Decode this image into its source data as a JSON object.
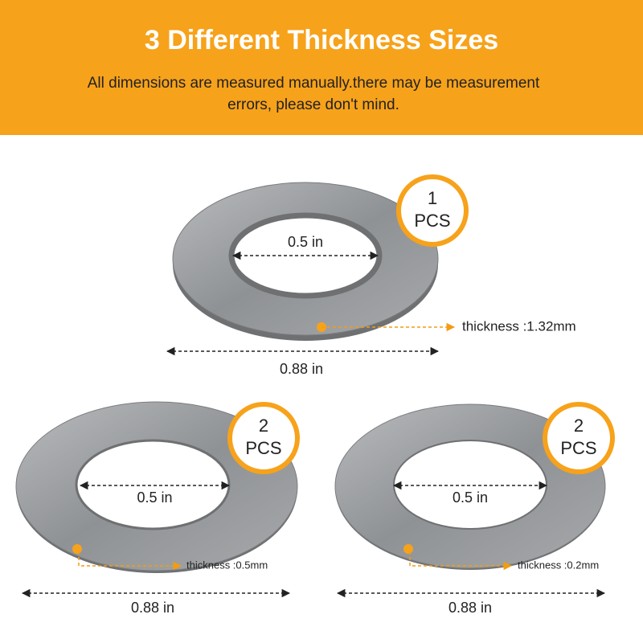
{
  "header": {
    "title": "3 Different Thickness Sizes",
    "subtitle_lines": [
      "All dimensions are measured manually.there may be measurement",
      "errors, please don't mind."
    ]
  },
  "washers": [
    {
      "count": "1",
      "unit": "PCS",
      "inner_diameter": "0.5 in",
      "outer_diameter": "0.88 in",
      "thickness": "thickness :1.32mm"
    },
    {
      "count": "2",
      "unit": "PCS",
      "inner_diameter": "0.5 in",
      "outer_diameter": "0.88 in",
      "thickness": "thickness :0.5mm"
    },
    {
      "count": "2",
      "unit": "PCS",
      "inner_diameter": "0.5 in",
      "outer_diameter": "0.88 in",
      "thickness": "thickness :0.2mm"
    }
  ]
}
